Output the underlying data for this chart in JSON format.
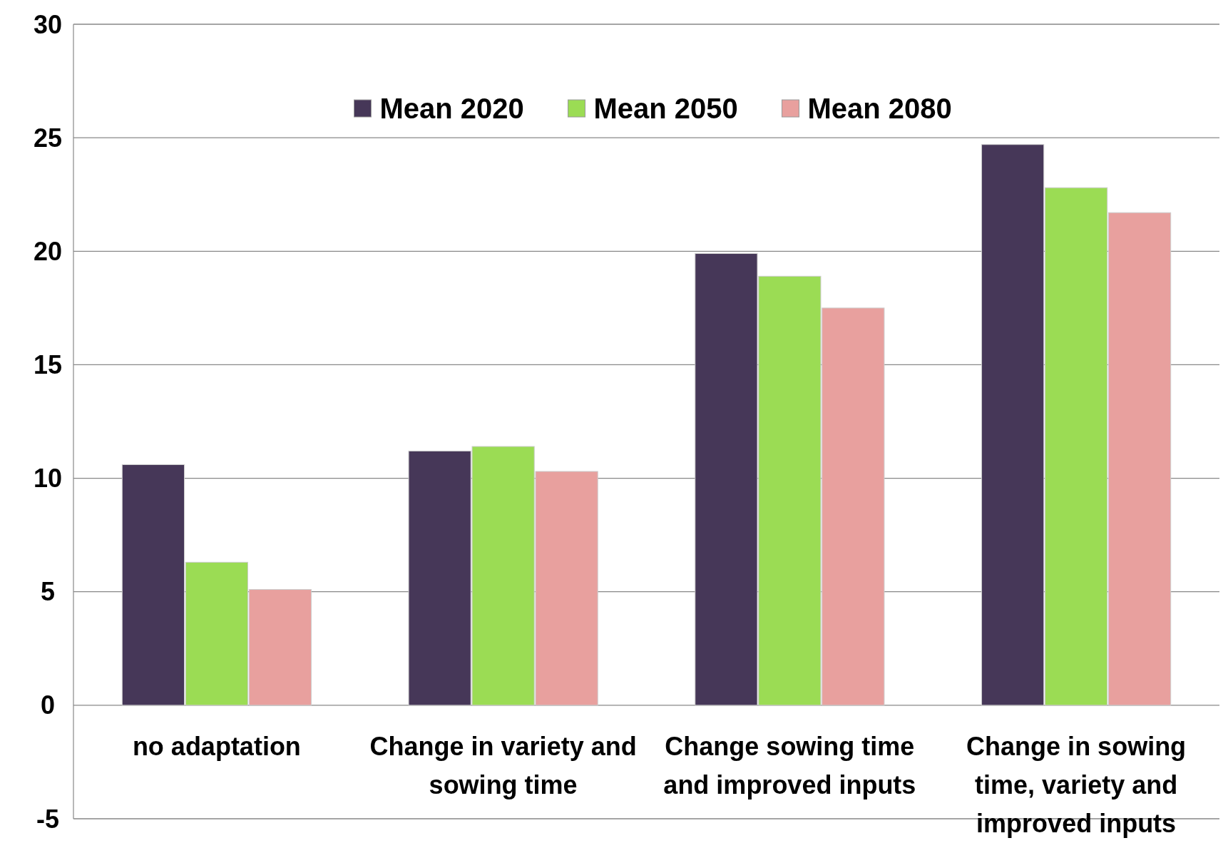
{
  "chart_data": {
    "type": "bar",
    "categories": [
      "no adaptation",
      "Change in variety and sowing time",
      "Change sowing time and improved inputs",
      "Change in sowing time, variety and improved inputs"
    ],
    "series": [
      {
        "name": "Mean 2020",
        "color": "#463758",
        "values": [
          10.6,
          11.2,
          19.9,
          24.7
        ]
      },
      {
        "name": "Mean 2050",
        "color": "#9bdc54",
        "values": [
          6.3,
          11.4,
          18.9,
          22.8
        ]
      },
      {
        "name": "Mean 2080",
        "color": "#e8a09e",
        "values": [
          5.1,
          10.3,
          17.5,
          21.7
        ]
      }
    ],
    "ylim": [
      -5,
      30
    ],
    "yticks": [
      -5,
      0,
      5,
      10,
      15,
      20,
      25,
      30
    ],
    "grid": "y",
    "legend": "top"
  }
}
